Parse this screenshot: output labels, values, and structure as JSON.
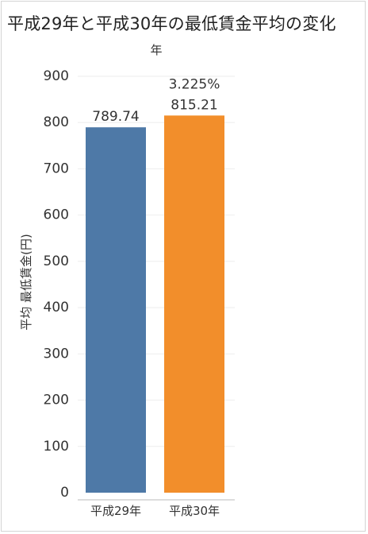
{
  "colors": {
    "bar_1": "#4e79a7",
    "bar_2": "#f28e2b",
    "grid": "#eeeeee",
    "text": "#333333"
  },
  "chart_data": {
    "type": "bar",
    "title": "平成29年と平成30年の最低賃金平均の変化",
    "column_header": "年",
    "xlabel": "",
    "ylabel": "平均 最低賃金(円)",
    "categories": [
      "平成29年",
      "平成30年"
    ],
    "values": [
      789.74,
      815.21
    ],
    "value_labels": [
      "789.74",
      "815.21"
    ],
    "change_labels": [
      "",
      "3.225%"
    ],
    "ylim": [
      0,
      900
    ],
    "yticks": [
      0,
      100,
      200,
      300,
      400,
      500,
      600,
      700,
      800,
      900
    ],
    "grid": true,
    "legend": "none"
  }
}
